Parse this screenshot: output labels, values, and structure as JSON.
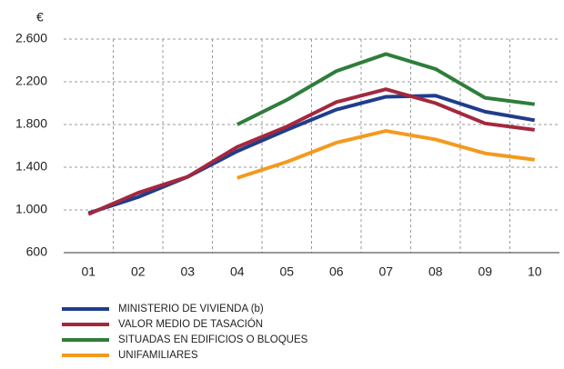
{
  "chart_data": {
    "type": "line",
    "y_unit": "€",
    "categories": [
      "01",
      "02",
      "03",
      "04",
      "05",
      "06",
      "07",
      "08",
      "09",
      "10"
    ],
    "series": [
      {
        "name": "MINISTERIO DE VIVIENDA (b)",
        "color": "#1f3d8c",
        "values": [
          970,
          1120,
          1310,
          1550,
          1750,
          1940,
          2060,
          2070,
          1920,
          1840
        ]
      },
      {
        "name": "VALOR MEDIO DE TASACIÓN",
        "color": "#a3283e",
        "values": [
          960,
          1160,
          1310,
          1590,
          1780,
          2010,
          2130,
          2000,
          1810,
          1750
        ]
      },
      {
        "name": "SITUADAS EN EDIFICIOS O BLOQUES",
        "color": "#2f7d3b",
        "values": [
          null,
          null,
          null,
          1800,
          2030,
          2300,
          2460,
          2320,
          2050,
          1990
        ]
      },
      {
        "name": "UNIFAMILIARES",
        "color": "#f39a1e",
        "values": [
          null,
          null,
          null,
          1300,
          1450,
          1630,
          1740,
          1660,
          1530,
          1470
        ]
      }
    ],
    "ylim": [
      600,
      2600
    ],
    "yticks": [
      {
        "value": 600,
        "label": "600"
      },
      {
        "value": 1000,
        "label": "1.000"
      },
      {
        "value": 1400,
        "label": "1.400"
      },
      {
        "value": 1800,
        "label": "1.800"
      },
      {
        "value": 2200,
        "label": "2.200"
      },
      {
        "value": 2600,
        "label": "2.600"
      }
    ],
    "grid": true
  }
}
